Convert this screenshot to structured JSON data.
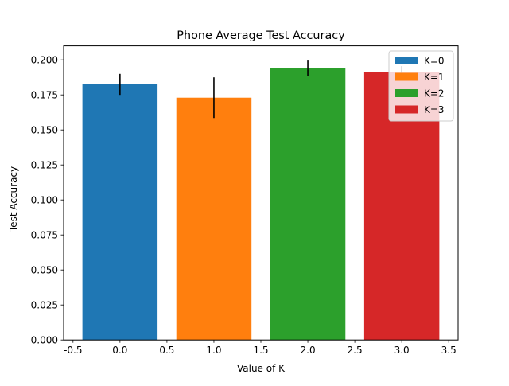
{
  "chart_data": {
    "type": "bar",
    "title": "Phone Average Test Accuracy",
    "xlabel": "Value of K",
    "ylabel": "Test Accuracy",
    "xlim": [
      -0.6,
      3.6
    ],
    "ylim": [
      0,
      0.21
    ],
    "x_ticks": [
      "-0.5",
      "0.0",
      "0.5",
      "1.0",
      "1.5",
      "2.0",
      "2.5",
      "3.0",
      "3.5"
    ],
    "x_tick_values": [
      -0.5,
      0,
      0.5,
      1,
      1.5,
      2,
      2.5,
      3,
      3.5
    ],
    "y_ticks": [
      "0.000",
      "0.025",
      "0.050",
      "0.075",
      "0.100",
      "0.125",
      "0.150",
      "0.175",
      "0.200"
    ],
    "y_tick_values": [
      0,
      0.025,
      0.05,
      0.075,
      0.1,
      0.125,
      0.15,
      0.175,
      0.2
    ],
    "bar_width": 0.8,
    "grid": false,
    "legend_position": "top-right",
    "series": [
      {
        "name": "K=0",
        "x": 0,
        "value": 0.1825,
        "error": 0.0075,
        "color": "#1f77b4"
      },
      {
        "name": "K=1",
        "x": 1,
        "value": 0.173,
        "error": 0.0145,
        "color": "#ff7f0e"
      },
      {
        "name": "K=2",
        "x": 2,
        "value": 0.194,
        "error": 0.0055,
        "color": "#2ca02c"
      },
      {
        "name": "K=3",
        "x": 3,
        "value": 0.1915,
        "error": 0.004,
        "color": "#d62728"
      }
    ]
  }
}
